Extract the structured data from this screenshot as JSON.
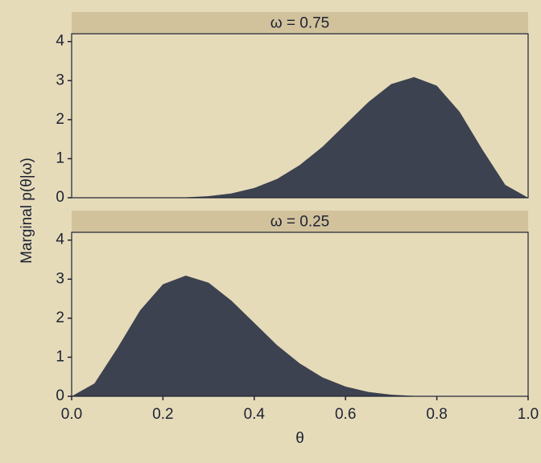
{
  "chart_data": [
    {
      "type": "area",
      "title": "ω = 0.75",
      "ylabel": "Marginal p(θ|ω)",
      "color": "#3d4250",
      "x": [
        0,
        0.05,
        0.1,
        0.15,
        0.2,
        0.25,
        0.3,
        0.35,
        0.4,
        0.45,
        0.5,
        0.55,
        0.6,
        0.65,
        0.7,
        0.75,
        0.8,
        0.85,
        0.9,
        0.95,
        1
      ],
      "values": [
        0,
        0,
        0,
        0,
        0,
        0.01,
        0.04,
        0.11,
        0.25,
        0.48,
        0.84,
        1.31,
        1.88,
        2.45,
        2.91,
        3.09,
        2.87,
        2.2,
        1.23,
        0.33,
        0
      ],
      "xlim": [
        0,
        1
      ],
      "ylim": [
        0,
        4.2
      ],
      "yticks": [
        0,
        1,
        2,
        3,
        4
      ]
    },
    {
      "type": "area",
      "title": "ω = 0.25",
      "xlabel": "θ",
      "color": "#3d4250",
      "x": [
        0,
        0.05,
        0.1,
        0.15,
        0.2,
        0.25,
        0.3,
        0.35,
        0.4,
        0.45,
        0.5,
        0.55,
        0.6,
        0.65,
        0.7,
        0.75,
        0.8,
        0.85,
        0.9,
        0.95,
        1
      ],
      "values": [
        0,
        0.33,
        1.23,
        2.2,
        2.87,
        3.09,
        2.91,
        2.45,
        1.88,
        1.31,
        0.84,
        0.48,
        0.25,
        0.11,
        0.04,
        0.01,
        0,
        0,
        0,
        0,
        0
      ],
      "xlim": [
        0,
        1
      ],
      "ylim": [
        0,
        4.2
      ],
      "yticks": [
        0,
        1,
        2,
        3,
        4
      ],
      "xticks": [
        {
          "value": 0,
          "label": "0.0"
        },
        0.2,
        0.4,
        0.6,
        0.8,
        {
          "value": 1,
          "label": "1.0"
        }
      ]
    }
  ]
}
